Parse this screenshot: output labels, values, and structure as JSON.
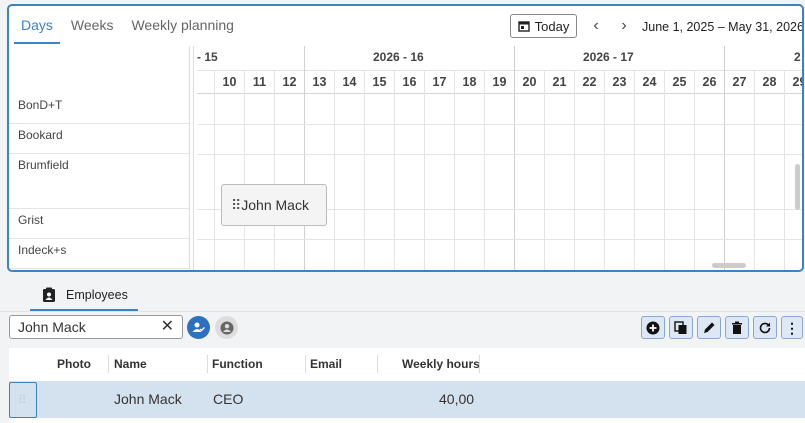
{
  "scheduler": {
    "tabs": [
      "Days",
      "Weeks",
      "Weekly planning"
    ],
    "active_tab": "Days",
    "today_label": "Today",
    "range_label": "June 1, 2025 – May 31, 2026",
    "weeks": [
      {
        "label": "- 15"
      },
      {
        "label": "2026 - 16"
      },
      {
        "label": "2026 - 17"
      },
      {
        "label": "2"
      }
    ],
    "days": [
      "10",
      "11",
      "12",
      "13",
      "14",
      "15",
      "16",
      "17",
      "18",
      "19",
      "20",
      "21",
      "22",
      "23",
      "24",
      "25",
      "26",
      "27",
      "28",
      "29"
    ],
    "resources": [
      "BonD+T",
      "Bookard",
      "Brumfield",
      "Grist",
      "Indeck+s"
    ],
    "drag_card": {
      "label": "John Mack"
    }
  },
  "employees_panel": {
    "tab_label": "Employees",
    "search": {
      "value": "John Mack"
    },
    "table": {
      "columns": [
        "Photo",
        "Name",
        "Function",
        "Email",
        "Weekly hours"
      ],
      "rows": [
        {
          "photo": "",
          "name": "John Mack",
          "function": "CEO",
          "email": "",
          "weekly_hours": "40,00"
        }
      ]
    }
  },
  "colors": {
    "accent": "#3b82c6",
    "selection": "#d4e1ee"
  }
}
